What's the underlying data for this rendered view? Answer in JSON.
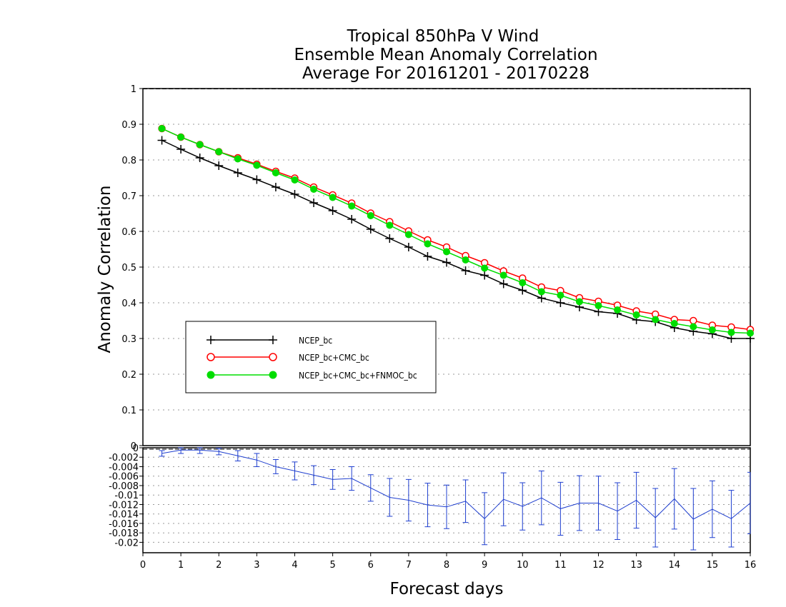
{
  "chart_data": [
    {
      "type": "line",
      "title_lines": [
        "Tropical 850hPa V Wind",
        "Ensemble Mean Anomaly Correlation",
        "Average For 20161201 - 20170228"
      ],
      "ylabel": "Anomaly Correlation",
      "xlim": [
        0,
        16
      ],
      "ylim": [
        0,
        1
      ],
      "yticks": [
        "0",
        "0.1",
        "0.2",
        "0.3",
        "0.4",
        "0.5",
        "0.6",
        "0.7",
        "0.8",
        "0.9",
        "1"
      ],
      "grid": true,
      "legend_placement": "lower-left",
      "x": [
        0.5,
        1,
        1.5,
        2,
        2.5,
        3,
        3.5,
        4,
        4.5,
        5,
        5.5,
        6,
        6.5,
        7,
        7.5,
        8,
        8.5,
        9,
        9.5,
        10,
        10.5,
        11,
        11.5,
        12,
        12.5,
        13,
        13.5,
        14,
        14.5,
        15,
        15.5,
        16
      ],
      "series": [
        {
          "name": "NCEP_bc",
          "color": "#000000",
          "marker": "plus",
          "values": [
            0.855,
            0.83,
            0.806,
            0.784,
            0.764,
            0.745,
            0.724,
            0.704,
            0.68,
            0.658,
            0.634,
            0.606,
            0.58,
            0.556,
            0.53,
            0.513,
            0.49,
            0.477,
            0.453,
            0.435,
            0.413,
            0.4,
            0.388,
            0.375,
            0.37,
            0.352,
            0.347,
            0.33,
            0.32,
            0.313,
            0.3,
            0.3
          ]
        },
        {
          "name": "NCEP_bc+CMC_bc",
          "color": "#ff0000",
          "marker": "open-circle",
          "values": [
            0.888,
            0.864,
            0.843,
            0.823,
            0.806,
            0.788,
            0.768,
            0.749,
            0.724,
            0.702,
            0.679,
            0.651,
            0.627,
            0.601,
            0.576,
            0.556,
            0.532,
            0.512,
            0.489,
            0.469,
            0.444,
            0.434,
            0.414,
            0.404,
            0.393,
            0.377,
            0.368,
            0.353,
            0.35,
            0.337,
            0.332,
            0.325
          ]
        },
        {
          "name": "NCEP_bc+CMC_bc+FNMOC_bc",
          "color": "#00dd00",
          "marker": "filled-circle",
          "values": [
            0.888,
            0.864,
            0.843,
            0.823,
            0.803,
            0.785,
            0.764,
            0.744,
            0.718,
            0.695,
            0.671,
            0.644,
            0.617,
            0.591,
            0.565,
            0.543,
            0.52,
            0.497,
            0.477,
            0.456,
            0.431,
            0.421,
            0.403,
            0.392,
            0.38,
            0.366,
            0.353,
            0.342,
            0.333,
            0.324,
            0.317,
            0.315
          ]
        }
      ]
    },
    {
      "type": "line",
      "xlabel": "Forecast days",
      "xlim": [
        0,
        16
      ],
      "xticks": [
        "0",
        "1",
        "2",
        "3",
        "4",
        "5",
        "6",
        "7",
        "8",
        "9",
        "10",
        "11",
        "12",
        "13",
        "14",
        "15",
        "16"
      ],
      "ylim": [
        -0.0222,
        0
      ],
      "yticks": [
        "0",
        "-0.002",
        "-0.004",
        "-0.006",
        "-0.008",
        "-0.01",
        "-0.012",
        "-0.014",
        "-0.016",
        "-0.018",
        "-0.02"
      ],
      "grid": true,
      "series": [
        {
          "color": "#1f3fcf",
          "marker": "error-bar",
          "x": [
            0.5,
            1,
            1.5,
            2,
            2.5,
            3,
            3.5,
            4,
            4.5,
            5,
            5.5,
            6,
            6.5,
            7,
            7.5,
            8,
            8.5,
            9,
            9.5,
            10,
            10.5,
            11,
            11.5,
            12,
            12.5,
            13,
            13.5,
            14,
            14.5,
            15,
            15.5,
            16
          ],
          "values": [
            -0.0012,
            -0.0005,
            -0.0005,
            -0.0008,
            -0.0017,
            -0.0026,
            -0.004,
            -0.0049,
            -0.0058,
            -0.0067,
            -0.0065,
            -0.0085,
            -0.0105,
            -0.0111,
            -0.0121,
            -0.0125,
            -0.0113,
            -0.015,
            -0.0109,
            -0.0124,
            -0.0106,
            -0.0129,
            -0.0117,
            -0.0117,
            -0.0134,
            -0.0111,
            -0.0148,
            -0.0108,
            -0.0151,
            -0.013,
            -0.015,
            -0.0117
          ],
          "lower": [
            -0.0018,
            -0.0012,
            -0.0012,
            -0.0015,
            -0.0028,
            -0.004,
            -0.0055,
            -0.0068,
            -0.0078,
            -0.0088,
            -0.009,
            -0.0113,
            -0.0145,
            -0.0155,
            -0.0167,
            -0.0171,
            -0.0158,
            -0.0205,
            -0.0165,
            -0.0174,
            -0.0163,
            -0.0185,
            -0.0175,
            -0.0174,
            -0.0194,
            -0.017,
            -0.021,
            -0.0172,
            -0.0216,
            -0.019,
            -0.021,
            -0.0182
          ],
          "upper": [
            -0.0006,
            0.0002,
            0.0002,
            -0.0001,
            -0.0006,
            -0.0012,
            -0.0025,
            -0.003,
            -0.0038,
            -0.0046,
            -0.004,
            -0.0057,
            -0.0065,
            -0.0067,
            -0.0075,
            -0.0079,
            -0.0068,
            -0.0095,
            -0.0053,
            -0.0074,
            -0.0049,
            -0.0073,
            -0.0059,
            -0.006,
            -0.0074,
            -0.0052,
            -0.0086,
            -0.0044,
            -0.0086,
            -0.007,
            -0.009,
            -0.0052
          ]
        }
      ]
    }
  ]
}
